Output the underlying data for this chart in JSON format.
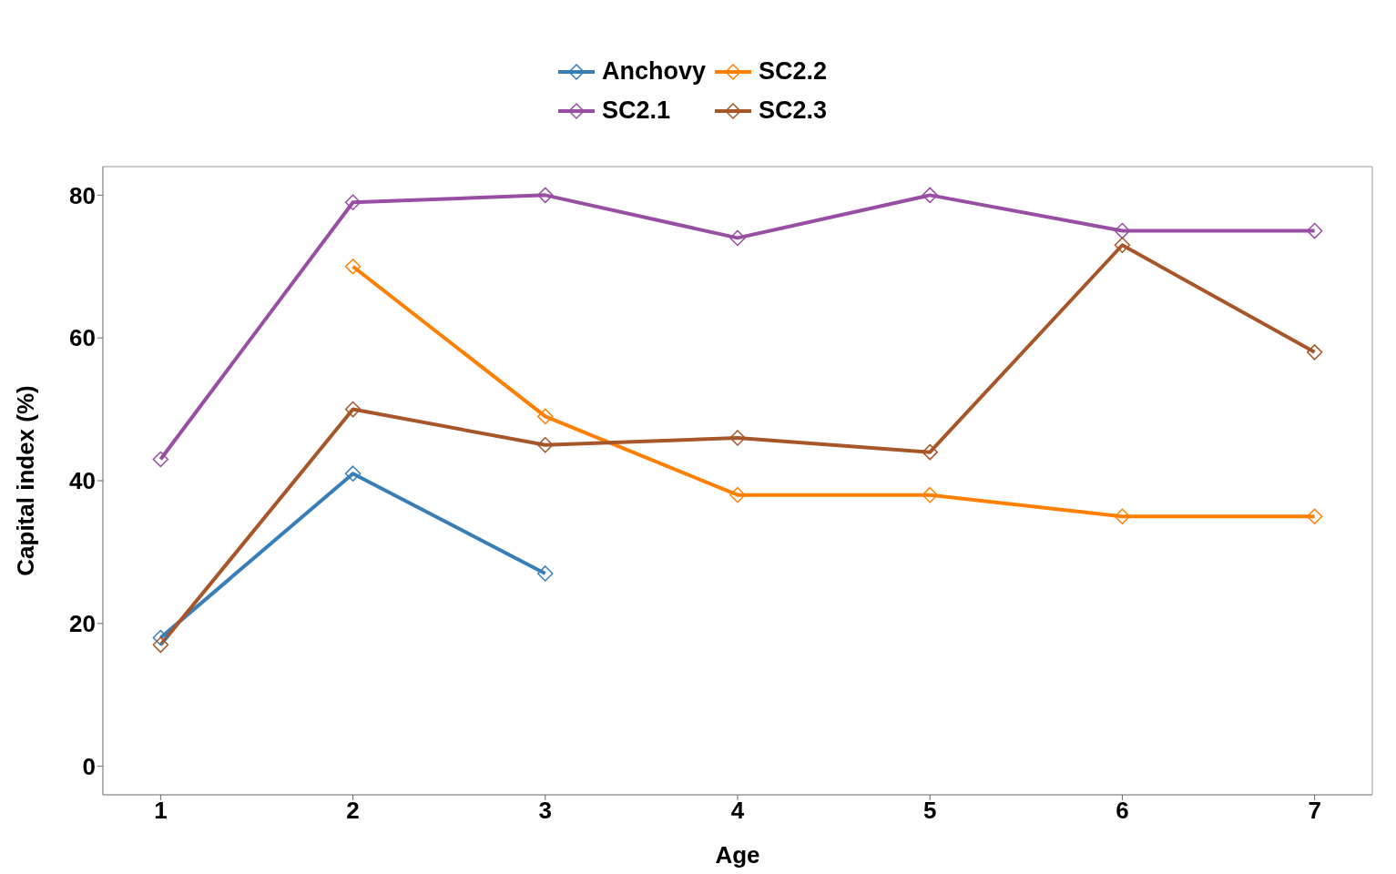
{
  "chart_data": {
    "type": "line",
    "xlabel": "Age",
    "ylabel": "Capital index (%)",
    "x": [
      1,
      2,
      3,
      4,
      5,
      6,
      7
    ],
    "xlim": [
      0.7,
      7.3
    ],
    "xticks": [
      1,
      2,
      3,
      4,
      5,
      6,
      7
    ],
    "ylim": [
      -4,
      84
    ],
    "yticks": [
      0,
      20,
      40,
      60,
      80
    ],
    "grid": false,
    "legend": "top",
    "marker": "diamond",
    "line_style": "solid",
    "series": [
      {
        "name": "Anchovy",
        "color": "#377eb8",
        "values": [
          18,
          41,
          27,
          null,
          null,
          null,
          null
        ]
      },
      {
        "name": "SC2.1",
        "color": "#984ea3",
        "values": [
          43,
          79,
          80,
          74,
          80,
          75,
          75
        ]
      },
      {
        "name": "SC2.2",
        "color": "#ff7f00",
        "values": [
          null,
          70,
          49,
          38,
          38,
          35,
          35
        ]
      },
      {
        "name": "SC2.3",
        "color": "#a65628",
        "values": [
          17,
          50,
          45,
          46,
          44,
          73,
          58
        ]
      }
    ]
  }
}
